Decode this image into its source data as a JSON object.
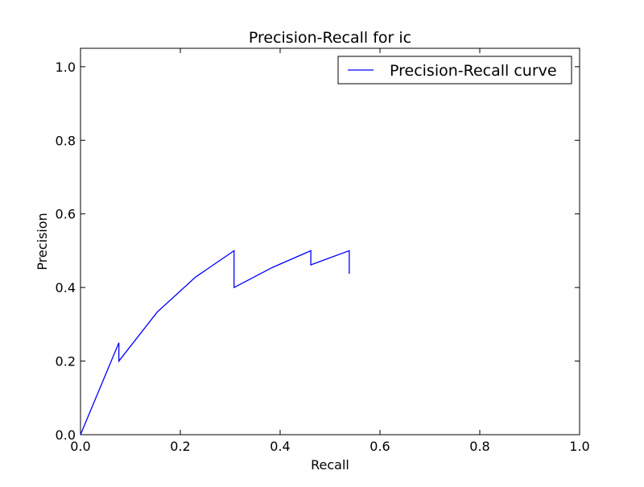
{
  "chart_data": {
    "type": "line",
    "title": "Precision-Recall for ic",
    "xlabel": "Recall",
    "ylabel": "Precision",
    "xlim": [
      0.0,
      1.0
    ],
    "ylim": [
      0.0,
      1.05
    ],
    "xticks": [
      0.0,
      0.2,
      0.4,
      0.6,
      0.8,
      1.0
    ],
    "yticks": [
      0.0,
      0.2,
      0.4,
      0.6,
      0.8,
      1.0
    ],
    "xtick_labels": [
      "0.0",
      "0.2",
      "0.4",
      "0.6",
      "0.8",
      "1.0"
    ],
    "ytick_labels": [
      "0.0",
      "0.2",
      "0.4",
      "0.6",
      "0.8",
      "1.0"
    ],
    "grid": false,
    "legend": {
      "position": "top-right"
    },
    "series": [
      {
        "name": "Precision-Recall curve",
        "color": "#0000ff",
        "x": [
          0.0,
          0.0769,
          0.0769,
          0.1538,
          0.2308,
          0.3077,
          0.3077,
          0.3846,
          0.4615,
          0.4615,
          0.5385,
          0.5385
        ],
        "y": [
          0.0,
          0.25,
          0.2,
          0.3333,
          0.4286,
          0.5,
          0.4,
          0.4545,
          0.5,
          0.4615,
          0.5,
          0.4375
        ]
      }
    ]
  }
}
